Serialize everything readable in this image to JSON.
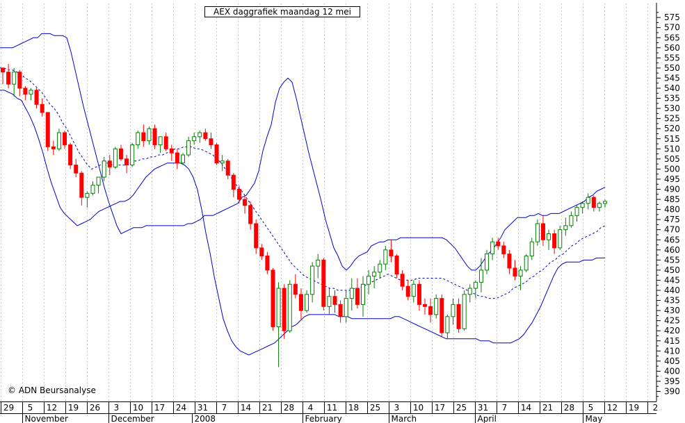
{
  "chart_data": {
    "type": "candlestick",
    "title": "AEX daggrafiek maandag 12 mei",
    "copyright": "© ADN Beursanalyse",
    "y_axis": {
      "position": "right",
      "ylim": [
        383,
        582
      ],
      "ticks": [
        390,
        395,
        400,
        405,
        410,
        415,
        420,
        425,
        430,
        435,
        440,
        445,
        450,
        455,
        460,
        465,
        470,
        475,
        480,
        485,
        490,
        495,
        500,
        505,
        510,
        515,
        520,
        525,
        530,
        535,
        540,
        545,
        550,
        555,
        560,
        565,
        570,
        575
      ]
    },
    "x_day_labels": [
      "29",
      "5",
      "12",
      "19",
      "26",
      "3",
      "10",
      "17",
      "24",
      "31",
      "7",
      "14",
      "21",
      "28",
      "4",
      "11",
      "18",
      "25",
      "3",
      "10",
      "17",
      "25",
      "31",
      "7",
      "14",
      "21",
      "28",
      "5",
      "12",
      "19",
      "2"
    ],
    "x_month_labels": [
      "November",
      "December",
      "2008",
      "February",
      "March",
      "April",
      "May"
    ],
    "colors": {
      "up": "#008000",
      "down": "#ff0000",
      "band": "#0000cc",
      "grid": "#c8c8c8",
      "background": "#ffffff"
    },
    "series": [
      {
        "kind": "candles",
        "values": [
          [
            550,
            550,
            542,
            548
          ],
          [
            548,
            552,
            540,
            542
          ],
          [
            542,
            550,
            536,
            548
          ],
          [
            548,
            549,
            536,
            540
          ],
          [
            540,
            541,
            534,
            537
          ],
          [
            537,
            540,
            534,
            539
          ],
          [
            539,
            540,
            530,
            532
          ],
          [
            532,
            535,
            526,
            528
          ],
          [
            528,
            528,
            509,
            511
          ],
          [
            511,
            514,
            507,
            510
          ],
          [
            510,
            520,
            509,
            518
          ],
          [
            518,
            519,
            510,
            512
          ],
          [
            512,
            513,
            500,
            502
          ],
          [
            502,
            505,
            496,
            498
          ],
          [
            498,
            499,
            482,
            486
          ],
          [
            486,
            489,
            481,
            488
          ],
          [
            488,
            494,
            487,
            492
          ],
          [
            492,
            496,
            488,
            496
          ],
          [
            496,
            506,
            494,
            504
          ],
          [
            504,
            507,
            497,
            501
          ],
          [
            501,
            511,
            500,
            510
          ],
          [
            510,
            512,
            504,
            505
          ],
          [
            505,
            507,
            498,
            502
          ],
          [
            502,
            513,
            501,
            512
          ],
          [
            512,
            519,
            510,
            518
          ],
          [
            518,
            522,
            511,
            514
          ],
          [
            514,
            521,
            512,
            520
          ],
          [
            520,
            522,
            510,
            512
          ],
          [
            512,
            514,
            508,
            516
          ],
          [
            516,
            518,
            509,
            510
          ],
          [
            510,
            512,
            504,
            508
          ],
          [
            508,
            510,
            500,
            503
          ],
          [
            503,
            508,
            502,
            507
          ],
          [
            507,
            516,
            506,
            514
          ],
          [
            514,
            518,
            512,
            516
          ],
          [
            516,
            519,
            513,
            518
          ],
          [
            518,
            520,
            514,
            515
          ],
          [
            515,
            518,
            510,
            512
          ],
          [
            512,
            513,
            502,
            503
          ],
          [
            503,
            507,
            499,
            504
          ],
          [
            504,
            505,
            495,
            497
          ],
          [
            497,
            498,
            486,
            490
          ],
          [
            490,
            492,
            483,
            485
          ],
          [
            485,
            487,
            478,
            482
          ],
          [
            482,
            484,
            470,
            473
          ],
          [
            473,
            475,
            458,
            461
          ],
          [
            461,
            463,
            455,
            457
          ],
          [
            457,
            459,
            448,
            450
          ],
          [
            450,
            451,
            420,
            422
          ],
          [
            422,
            444,
            402,
            441
          ],
          [
            441,
            443,
            416,
            420
          ],
          [
            420,
            445,
            419,
            443
          ],
          [
            443,
            448,
            436,
            438
          ],
          [
            438,
            441,
            425,
            430
          ],
          [
            430,
            440,
            429,
            438
          ],
          [
            438,
            454,
            434,
            452
          ],
          [
            452,
            458,
            446,
            455
          ],
          [
            455,
            456,
            430,
            432
          ],
          [
            432,
            441,
            428,
            437
          ],
          [
            437,
            440,
            429,
            433
          ],
          [
            433,
            435,
            424,
            427
          ],
          [
            427,
            440,
            424,
            436
          ],
          [
            436,
            446,
            430,
            441
          ],
          [
            441,
            446,
            431,
            433
          ],
          [
            433,
            447,
            427,
            443
          ],
          [
            443,
            450,
            438,
            447
          ],
          [
            447,
            452,
            441,
            449
          ],
          [
            449,
            455,
            446,
            453
          ],
          [
            453,
            462,
            450,
            460
          ],
          [
            460,
            465,
            454,
            457
          ],
          [
            457,
            458,
            446,
            448
          ],
          [
            448,
            450,
            440,
            442
          ],
          [
            442,
            445,
            435,
            437
          ],
          [
            437,
            445,
            434,
            443
          ],
          [
            443,
            445,
            430,
            433
          ],
          [
            433,
            436,
            428,
            432
          ],
          [
            432,
            436,
            424,
            428
          ],
          [
            428,
            438,
            426,
            436
          ],
          [
            436,
            438,
            417,
            419
          ],
          [
            419,
            428,
            416,
            427
          ],
          [
            427,
            436,
            423,
            433
          ],
          [
            433,
            436,
            419,
            421
          ],
          [
            421,
            440,
            420,
            438
          ],
          [
            438,
            443,
            434,
            441
          ],
          [
            441,
            445,
            436,
            444
          ],
          [
            444,
            456,
            439,
            450
          ],
          [
            450,
            460,
            448,
            458
          ],
          [
            458,
            466,
            455,
            464
          ],
          [
            464,
            466,
            460,
            462
          ],
          [
            462,
            464,
            456,
            458
          ],
          [
            458,
            460,
            448,
            451
          ],
          [
            451,
            455,
            445,
            447
          ],
          [
            447,
            452,
            440,
            450
          ],
          [
            450,
            458,
            449,
            457
          ],
          [
            457,
            466,
            455,
            464
          ],
          [
            464,
            475,
            462,
            473
          ],
          [
            473,
            477,
            462,
            465
          ],
          [
            465,
            470,
            460,
            468
          ],
          [
            468,
            470,
            458,
            461
          ],
          [
            461,
            472,
            460,
            470
          ],
          [
            470,
            476,
            467,
            472
          ],
          [
            472,
            479,
            471,
            477
          ],
          [
            477,
            482,
            474,
            481
          ],
          [
            481,
            484,
            478,
            483
          ],
          [
            483,
            488,
            480,
            486
          ],
          [
            486,
            487,
            479,
            481
          ],
          [
            481,
            484,
            479,
            483
          ],
          [
            483,
            485,
            481,
            484
          ]
        ]
      },
      {
        "kind": "upper_band",
        "values": [
          560,
          560,
          560,
          560,
          561,
          562,
          563,
          564,
          565,
          565,
          567,
          567,
          567,
          566,
          566,
          566,
          565,
          558,
          549,
          540,
          531,
          523,
          515,
          507,
          499,
          491,
          484,
          478,
          472,
          468,
          469,
          470,
          471,
          471,
          471,
          472,
          472,
          472,
          472,
          472,
          472,
          472,
          472,
          472,
          472,
          473,
          473,
          474,
          475,
          477,
          477,
          477,
          478,
          479,
          480,
          481,
          482,
          483,
          486,
          487,
          490,
          493,
          499,
          509,
          516,
          522,
          533,
          540,
          543,
          545,
          543,
          535,
          526,
          517,
          508,
          500,
          492,
          484,
          475,
          468,
          461,
          457,
          452,
          450,
          452,
          455,
          457,
          458,
          459,
          462,
          463,
          464,
          464,
          465,
          465,
          465,
          466,
          466,
          466,
          466,
          466,
          466,
          466,
          466,
          466,
          466,
          466,
          465,
          463,
          461,
          458,
          455,
          452,
          450,
          450,
          452,
          455,
          458,
          460,
          463,
          466,
          470,
          472,
          474,
          476,
          476,
          476,
          477,
          477,
          478,
          477,
          477,
          478,
          478,
          478,
          479,
          480,
          481,
          482,
          483,
          484,
          486,
          487,
          489,
          490,
          491
        ]
      },
      {
        "kind": "middle_band",
        "values": [
          550,
          550,
          549,
          549,
          548,
          547,
          545,
          544,
          542,
          540,
          538,
          535,
          532,
          530,
          527,
          523,
          520,
          516,
          512,
          508,
          505,
          502,
          500,
          501,
          502,
          503,
          503,
          502,
          502,
          502,
          502,
          503,
          504,
          504,
          505,
          505,
          506,
          506,
          507,
          507,
          508,
          509,
          510,
          510,
          511,
          511,
          511,
          510,
          510,
          509,
          508,
          507,
          505,
          503,
          500,
          497,
          494,
          491,
          489,
          486,
          483,
          480,
          477,
          474,
          471,
          468,
          465,
          462,
          459,
          456,
          453,
          451,
          449,
          447,
          446,
          445,
          444,
          443,
          442,
          441,
          441,
          440,
          440,
          440,
          440,
          441,
          441,
          442,
          443,
          444,
          445,
          446,
          447,
          448,
          447,
          446,
          445,
          445,
          445,
          445,
          446,
          446,
          446,
          446,
          446,
          446,
          446,
          445,
          444,
          443,
          442,
          441,
          440,
          439,
          438,
          437,
          437,
          436,
          436,
          436,
          437,
          438,
          439,
          441,
          442,
          443,
          444,
          446,
          447,
          449,
          450,
          452,
          454,
          455,
          457,
          458,
          460,
          462,
          463,
          465,
          466,
          467,
          468,
          469,
          471,
          472
        ]
      },
      {
        "kind": "lower_band",
        "values": [
          539,
          539,
          538,
          537,
          535,
          534,
          530,
          526,
          521,
          515,
          508,
          500,
          493,
          487,
          481,
          478,
          476,
          474,
          472,
          473,
          474,
          475,
          477,
          479,
          480,
          481,
          482,
          483,
          484,
          484,
          485,
          487,
          490,
          493,
          496,
          498,
          500,
          501,
          502,
          503,
          503,
          503,
          503,
          502,
          500,
          496,
          490,
          480,
          468,
          458,
          446,
          436,
          426,
          420,
          415,
          412,
          410,
          409,
          408,
          409,
          410,
          411,
          412,
          413,
          414,
          416,
          418,
          420,
          422,
          423,
          425,
          427,
          428,
          428,
          428,
          428,
          428,
          428,
          428,
          427,
          427,
          427,
          426,
          426,
          426,
          426,
          426,
          426,
          426,
          426,
          426,
          426,
          427,
          427,
          426,
          425,
          424,
          423,
          422,
          421,
          420,
          419,
          418,
          417,
          416,
          416,
          416,
          416,
          416,
          416,
          416,
          416,
          415,
          415,
          415,
          414,
          414,
          414,
          414,
          414,
          415,
          416,
          418,
          421,
          424,
          428,
          432,
          437,
          442,
          447,
          451,
          453,
          454,
          454,
          454,
          454,
          455,
          455,
          455,
          456,
          456,
          456
        ]
      }
    ]
  }
}
